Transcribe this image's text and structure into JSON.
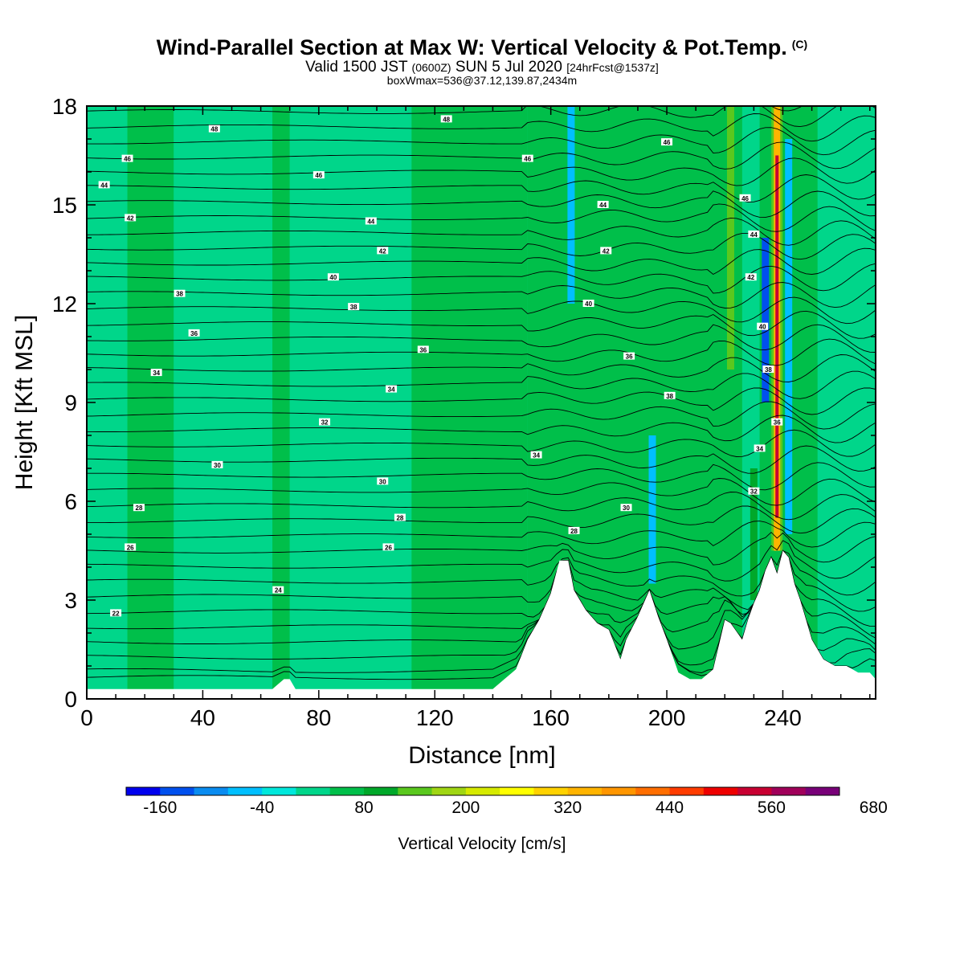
{
  "header": {
    "title": "Wind-Parallel Section at Max W: Vertical Velocity & Pot.Temp.",
    "copyright": "(C)",
    "valid_prefix": "Valid 1500 JST",
    "valid_utc": "(0600Z)",
    "valid_date": "SUN 5 Jul 2020",
    "forecast": "[24hrFcst@1537z]",
    "boxinfo": "boxWmax=536@37.12,139.87,2434m"
  },
  "chart_data": {
    "type": "heatmap",
    "xlabel": "Distance [nm]",
    "ylabel": "Height [Kft MSL]",
    "xlim": [
      0,
      272
    ],
    "ylim": [
      0,
      18
    ],
    "x_ticks": [
      0,
      40,
      80,
      120,
      160,
      200,
      240
    ],
    "y_ticks": [
      0,
      3,
      6,
      9,
      12,
      15,
      18
    ],
    "colorbar": {
      "label": "Vertical Velocity [cm/s]",
      "min": -200,
      "step": 40,
      "tick_labels": [
        "-160",
        "-40",
        "80",
        "200",
        "320",
        "440",
        "560",
        "680"
      ],
      "tick_values": [
        -160,
        -40,
        80,
        200,
        320,
        440,
        560,
        680
      ],
      "colors": [
        "#0000ee",
        "#0050ee",
        "#0a8cf0",
        "#00bfff",
        "#00e8dc",
        "#00d68a",
        "#00bf4a",
        "#00a82a",
        "#5ac81e",
        "#a0d614",
        "#d6ea00",
        "#ffff00",
        "#ffd200",
        "#ffb400",
        "#ff9600",
        "#ff6e00",
        "#ff3c00",
        "#ee0000",
        "#c80032",
        "#a0005a",
        "#780078"
      ]
    },
    "regions": [
      {
        "x0": 0,
        "x1": 14,
        "w": 15
      },
      {
        "x0": 14,
        "x1": 30,
        "w": 45
      },
      {
        "x0": 30,
        "x1": 64,
        "w": 15
      },
      {
        "x0": 64,
        "x1": 70,
        "w": 45
      },
      {
        "x0": 70,
        "x1": 112,
        "w": 10
      },
      {
        "x0": 112,
        "x1": 152,
        "w": 45
      },
      {
        "x0": 152,
        "x1": 226,
        "w": 40
      },
      {
        "x0": 226,
        "x1": 232,
        "w": 15
      },
      {
        "x0": 232,
        "x1": 252,
        "w": 40
      },
      {
        "x0": 252,
        "x1": 272,
        "w": 15
      }
    ],
    "features": [
      {
        "x": 167,
        "y0": 12,
        "y1": 18,
        "w": -60
      },
      {
        "x": 195,
        "y0": 3.5,
        "y1": 8,
        "w": -60
      },
      {
        "x": 222,
        "y0": 10,
        "y1": 18,
        "w": 220
      },
      {
        "x": 230,
        "y0": 3,
        "y1": 7,
        "w": 100
      },
      {
        "x": 234,
        "y0": 9,
        "y1": 14,
        "w": -160
      },
      {
        "x": 238,
        "y0": 4.5,
        "y1": 18,
        "w": 536
      },
      {
        "x": 242,
        "y0": 5,
        "y1": 17,
        "w": -80
      }
    ],
    "terrain": [
      [
        0,
        0.3
      ],
      [
        8,
        0.3
      ],
      [
        16,
        0.3
      ],
      [
        24,
        0.3
      ],
      [
        32,
        0.3
      ],
      [
        40,
        0.3
      ],
      [
        48,
        0.3
      ],
      [
        56,
        0.3
      ],
      [
        64,
        0.3
      ],
      [
        68,
        0.6
      ],
      [
        70,
        0.6
      ],
      [
        72,
        0.3
      ],
      [
        80,
        0.3
      ],
      [
        96,
        0.3
      ],
      [
        112,
        0.3
      ],
      [
        128,
        0.3
      ],
      [
        140,
        0.3
      ],
      [
        144,
        0.6
      ],
      [
        148,
        0.9
      ],
      [
        152,
        1.8
      ],
      [
        156,
        2.4
      ],
      [
        160,
        3.2
      ],
      [
        163,
        4.2
      ],
      [
        166,
        4.2
      ],
      [
        168,
        3.3
      ],
      [
        172,
        2.7
      ],
      [
        176,
        2.3
      ],
      [
        180,
        2.1
      ],
      [
        184,
        1.2
      ],
      [
        186,
        1.8
      ],
      [
        190,
        2.5
      ],
      [
        194,
        3.3
      ],
      [
        197,
        2.5
      ],
      [
        200,
        1.8
      ],
      [
        204,
        0.8
      ],
      [
        208,
        0.6
      ],
      [
        212,
        0.6
      ],
      [
        216,
        0.9
      ],
      [
        220,
        2.4
      ],
      [
        222,
        2.3
      ],
      [
        226,
        1.8
      ],
      [
        228,
        2.4
      ],
      [
        230,
        2.9
      ],
      [
        232,
        3.3
      ],
      [
        234,
        3.9
      ],
      [
        236,
        4.3
      ],
      [
        238,
        3.8
      ],
      [
        240,
        4.5
      ],
      [
        242,
        4.3
      ],
      [
        244,
        3.5
      ],
      [
        246,
        3.0
      ],
      [
        248,
        2.4
      ],
      [
        250,
        1.8
      ],
      [
        254,
        1.2
      ],
      [
        258,
        1.0
      ],
      [
        262,
        1.0
      ],
      [
        266,
        0.8
      ],
      [
        270,
        0.8
      ],
      [
        272,
        0.6
      ]
    ],
    "theta_contours": [
      {
        "value": 22,
        "label": "22",
        "h": 2.6,
        "lx": 10
      },
      {
        "value": 24,
        "label": "24",
        "h": 3.3,
        "lx": 66
      },
      {
        "value": 26,
        "label": "26",
        "h": 4.6,
        "lx": 15
      },
      {
        "value": 26,
        "label": "26",
        "h": 4.6,
        "lx": 104
      },
      {
        "value": 28,
        "label": "28",
        "h": 5.8,
        "lx": 18
      },
      {
        "value": 28,
        "label": "28",
        "h": 5.5,
        "lx": 108
      },
      {
        "value": 28,
        "label": "28",
        "h": 5.1,
        "lx": 168
      },
      {
        "value": 30,
        "label": "30",
        "h": 7.1,
        "lx": 45
      },
      {
        "value": 30,
        "label": "30",
        "h": 6.6,
        "lx": 102
      },
      {
        "value": 30,
        "label": "30",
        "h": 5.8,
        "lx": 186
      },
      {
        "value": 32,
        "label": "32",
        "h": 8.4,
        "lx": 82
      },
      {
        "value": 32,
        "label": "32",
        "h": 6.3,
        "lx": 230
      },
      {
        "value": 34,
        "label": "34",
        "h": 9.9,
        "lx": 24
      },
      {
        "value": 34,
        "label": "34",
        "h": 9.4,
        "lx": 105
      },
      {
        "value": 34,
        "label": "34",
        "h": 7.4,
        "lx": 155
      },
      {
        "value": 34,
        "label": "34",
        "h": 7.6,
        "lx": 232
      },
      {
        "value": 36,
        "label": "36",
        "h": 11.1,
        "lx": 37
      },
      {
        "value": 36,
        "label": "36",
        "h": 10.6,
        "lx": 116
      },
      {
        "value": 36,
        "label": "36",
        "h": 10.4,
        "lx": 187
      },
      {
        "value": 36,
        "label": "36",
        "h": 8.4,
        "lx": 238
      },
      {
        "value": 38,
        "label": "38",
        "h": 12.3,
        "lx": 32
      },
      {
        "value": 38,
        "label": "38",
        "h": 11.9,
        "lx": 92
      },
      {
        "value": 38,
        "label": "38",
        "h": 9.2,
        "lx": 201
      },
      {
        "value": 38,
        "label": "38",
        "h": 10.0,
        "lx": 235
      },
      {
        "value": 40,
        "label": "40",
        "h": 12.8,
        "lx": 85
      },
      {
        "value": 40,
        "label": "40",
        "h": 12.0,
        "lx": 173
      },
      {
        "value": 40,
        "label": "40",
        "h": 11.3,
        "lx": 233
      },
      {
        "value": 42,
        "label": "42",
        "h": 14.6,
        "lx": 15
      },
      {
        "value": 42,
        "label": "42",
        "h": 13.6,
        "lx": 102
      },
      {
        "value": 42,
        "label": "42",
        "h": 13.6,
        "lx": 179
      },
      {
        "value": 42,
        "label": "42",
        "h": 12.8,
        "lx": 229
      },
      {
        "value": 44,
        "label": "44",
        "h": 15.6,
        "lx": 6
      },
      {
        "value": 44,
        "label": "44",
        "h": 14.5,
        "lx": 98
      },
      {
        "value": 44,
        "label": "44",
        "h": 15.0,
        "lx": 178
      },
      {
        "value": 44,
        "label": "44",
        "h": 14.1,
        "lx": 230
      },
      {
        "value": 46,
        "label": "46",
        "h": 16.4,
        "lx": 14
      },
      {
        "value": 46,
        "label": "46",
        "h": 15.9,
        "lx": 80
      },
      {
        "value": 46,
        "label": "46",
        "h": 16.4,
        "lx": 152
      },
      {
        "value": 46,
        "label": "46",
        "h": 16.9,
        "lx": 200
      },
      {
        "value": 46,
        "label": "46",
        "h": 15.2,
        "lx": 227
      },
      {
        "value": 48,
        "label": "48",
        "h": 17.3,
        "lx": 44
      },
      {
        "value": 48,
        "label": "48",
        "h": 17.6,
        "lx": 124
      }
    ]
  }
}
